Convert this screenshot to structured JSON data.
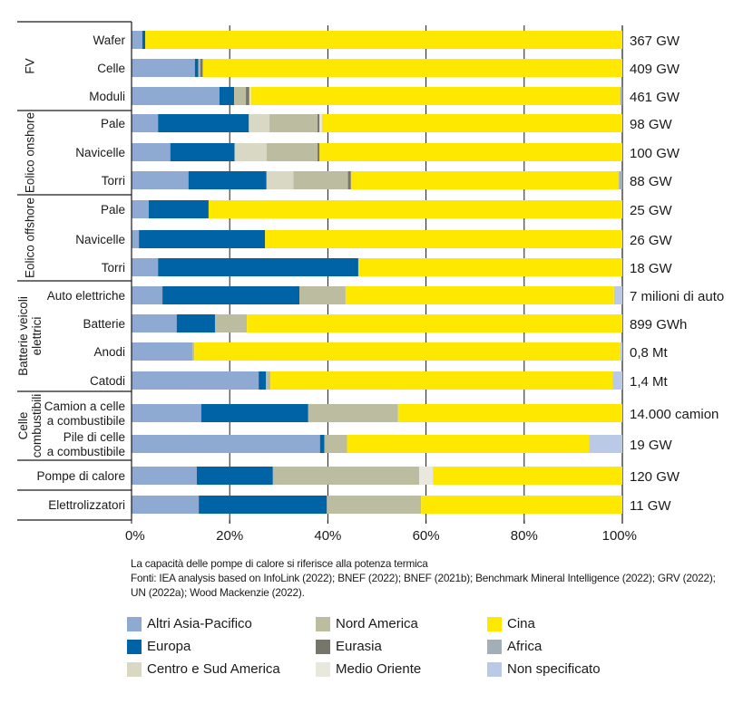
{
  "chart_data": {
    "type": "bar",
    "orientation": "horizontal",
    "stacked": true,
    "normalized": true,
    "title": "",
    "xlabel": "",
    "ylabel": "",
    "xlim": [
      0,
      100
    ],
    "x_ticks": [
      "0%",
      "20%",
      "40%",
      "60%",
      "80%",
      "100%"
    ],
    "grid": true,
    "legend_position": "bottom",
    "series_names": [
      "Altri Asia-Pacifico",
      "Europa",
      "Centro e Sud America",
      "Nord America",
      "Eurasia",
      "Medio Oriente",
      "Cina",
      "Africa",
      "Non specificato"
    ],
    "series_colors": {
      "Altri Asia-Pacifico": "#8faad2",
      "Europa": "#0063a6",
      "Centro e Sud America": "#d8d8c4",
      "Nord America": "#bcbda0",
      "Eurasia": "#76766a",
      "Medio Oriente": "#e8e8de",
      "Cina": "#ffe800",
      "Africa": "#a2afb8",
      "Non specificato": "#b9c9e6"
    },
    "groups": [
      {
        "name": "FV",
        "label_lines": [
          "FV"
        ]
      },
      {
        "name": "Eolico onshore",
        "label_lines": [
          "Eolico onshore"
        ]
      },
      {
        "name": "Eolico offshore",
        "label_lines": [
          "Eolico offshore"
        ]
      },
      {
        "name": "Batterie veicoli elettrici",
        "label_lines": [
          "Batterie veicoli",
          "elettrici"
        ]
      },
      {
        "name": "Celle combustibili",
        "label_lines": [
          "Celle",
          "combustibili"
        ]
      },
      {
        "name": "",
        "label_lines": []
      },
      {
        "name": "",
        "label_lines": []
      }
    ],
    "categories": [
      {
        "group": 0,
        "label_lines": [
          "Wafer"
        ],
        "total": "367 GW",
        "values": {
          "Altri Asia-Pacifico": 2.2,
          "Europa": 0.6,
          "Centro e Sud America": 0,
          "Nord America": 0,
          "Eurasia": 0,
          "Medio Oriente": 0,
          "Cina": 97.2,
          "Africa": 0,
          "Non specificato": 0
        }
      },
      {
        "group": 0,
        "label_lines": [
          "Celle"
        ],
        "total": "409 GW",
        "values": {
          "Altri Asia-Pacifico": 12.9,
          "Europa": 0.7,
          "Centro e Sud America": 0,
          "Nord America": 0.4,
          "Eurasia": 0.5,
          "Medio Oriente": 0,
          "Cina": 85.5,
          "Africa": 0,
          "Non specificato": 0
        }
      },
      {
        "group": 0,
        "label_lines": [
          "Moduli"
        ],
        "total": "461 GW",
        "values": {
          "Altri Asia-Pacifico": 17.9,
          "Europa": 3.0,
          "Centro e Sud America": 0,
          "Nord America": 2.4,
          "Eurasia": 0.7,
          "Medio Oriente": 0.3,
          "Cina": 75.3,
          "Africa": 0.4,
          "Non specificato": 0
        }
      },
      {
        "group": 1,
        "label_lines": [
          "Pale"
        ],
        "total": "98 GW",
        "values": {
          "Altri Asia-Pacifico": 5.4,
          "Europa": 18.5,
          "Centro e Sud America": 4.2,
          "Nord America": 9.8,
          "Eurasia": 0.4,
          "Medio Oriente": 0.5,
          "Cina": 61.2,
          "Africa": 0,
          "Non specificato": 0
        }
      },
      {
        "group": 1,
        "label_lines": [
          "Navicelle"
        ],
        "total": "100 GW",
        "values": {
          "Altri Asia-Pacifico": 7.9,
          "Europa": 13.1,
          "Centro e Sud America": 6.5,
          "Nord America": 10.4,
          "Eurasia": 0.4,
          "Medio Oriente": 0,
          "Cina": 61.7,
          "Africa": 0,
          "Non specificato": 0
        }
      },
      {
        "group": 1,
        "label_lines": [
          "Torri"
        ],
        "total": "88 GW",
        "values": {
          "Altri Asia-Pacifico": 11.6,
          "Europa": 15.9,
          "Centro e Sud America": 5.5,
          "Nord America": 11.1,
          "Eurasia": 0.6,
          "Medio Oriente": 0,
          "Cina": 54.6,
          "Africa": 0.7,
          "Non specificato": 0
        }
      },
      {
        "group": 2,
        "label_lines": [
          "Pale"
        ],
        "total": "25 GW",
        "values": {
          "Altri Asia-Pacifico": 3.5,
          "Europa": 12.2,
          "Centro e Sud America": 0,
          "Nord America": 0,
          "Eurasia": 0,
          "Medio Oriente": 0,
          "Cina": 84.3,
          "Africa": 0,
          "Non specificato": 0
        }
      },
      {
        "group": 2,
        "label_lines": [
          "Navicelle"
        ],
        "total": "26 GW",
        "values": {
          "Altri Asia-Pacifico": 1.5,
          "Europa": 25.7,
          "Centro e Sud America": 0,
          "Nord America": 0,
          "Eurasia": 0,
          "Medio Oriente": 0,
          "Cina": 72.8,
          "Africa": 0,
          "Non specificato": 0
        }
      },
      {
        "group": 2,
        "label_lines": [
          "Torri"
        ],
        "total": "18 GW",
        "values": {
          "Altri Asia-Pacifico": 5.4,
          "Europa": 40.8,
          "Centro e Sud America": 0,
          "Nord America": 0,
          "Eurasia": 0,
          "Medio Oriente": 0,
          "Cina": 53.8,
          "Africa": 0,
          "Non specificato": 0
        }
      },
      {
        "group": 3,
        "label_lines": [
          "Auto elettriche"
        ],
        "total": "7 milioni di auto",
        "values": {
          "Altri Asia-Pacifico": 6.3,
          "Europa": 27.9,
          "Centro e Sud America": 0,
          "Nord America": 9.4,
          "Eurasia": 0,
          "Medio Oriente": 0,
          "Cina": 54.7,
          "Africa": 0,
          "Non specificato": 1.7
        }
      },
      {
        "group": 3,
        "label_lines": [
          "Batterie"
        ],
        "total": "899 GWh",
        "values": {
          "Altri Asia-Pacifico": 9.2,
          "Europa": 7.8,
          "Centro e Sud America": 0,
          "Nord America": 6.5,
          "Eurasia": 0,
          "Medio Oriente": 0,
          "Cina": 76.5,
          "Africa": 0,
          "Non specificato": 0
        }
      },
      {
        "group": 3,
        "label_lines": [
          "Anodi"
        ],
        "total": "0,8 Mt",
        "values": {
          "Altri Asia-Pacifico": 12.4,
          "Europa": 0,
          "Centro e Sud America": 0,
          "Nord America": 0.4,
          "Eurasia": 0,
          "Medio Oriente": 0,
          "Cina": 86.8,
          "Africa": 0,
          "Non specificato": 0.4
        }
      },
      {
        "group": 3,
        "label_lines": [
          "Catodi"
        ],
        "total": "1,4 Mt",
        "values": {
          "Altri Asia-Pacifico": 25.9,
          "Europa": 1.5,
          "Centro e Sud America": 0,
          "Nord America": 0.9,
          "Eurasia": 0,
          "Medio Oriente": 0,
          "Cina": 69.7,
          "Africa": 0,
          "Non specificato": 2.0
        }
      },
      {
        "group": 4,
        "label_lines": [
          "Camion a celle",
          "a combustibile"
        ],
        "total": "14.000 camion",
        "values": {
          "Altri Asia-Pacifico": 14.2,
          "Europa": 21.8,
          "Centro e Sud America": 0,
          "Nord America": 18.3,
          "Eurasia": 0,
          "Medio Oriente": 0,
          "Cina": 45.7,
          "Africa": 0,
          "Non specificato": 0
        }
      },
      {
        "group": 4,
        "label_lines": [
          "Pile di celle",
          "a combustibile"
        ],
        "total": "19 GW",
        "values": {
          "Altri Asia-Pacifico": 38.4,
          "Europa": 0.9,
          "Centro e Sud America": 0,
          "Nord America": 4.6,
          "Eurasia": 0,
          "Medio Oriente": 0,
          "Cina": 49.3,
          "Africa": 0,
          "Non specificato": 6.8
        }
      },
      {
        "group": 5,
        "label_lines": [
          "Pompe di calore"
        ],
        "total": "120 GW",
        "values": {
          "Altri Asia-Pacifico": 13.3,
          "Europa": 15.5,
          "Centro e Sud America": 0,
          "Nord America": 29.8,
          "Eurasia": 0,
          "Medio Oriente": 2.8,
          "Cina": 38.6,
          "Africa": 0,
          "Non specificato": 0
        }
      },
      {
        "group": 6,
        "label_lines": [
          "Elettrolizzatori"
        ],
        "total": "11 GW",
        "values": {
          "Altri Asia-Pacifico": 13.7,
          "Europa": 26.1,
          "Centro e Sud America": 0,
          "Nord America": 19.2,
          "Eurasia": 0,
          "Medio Oriente": 0,
          "Cina": 41.0,
          "Africa": 0,
          "Non specificato": 0
        }
      }
    ],
    "annotations": [
      "La capacità delle pompe di calore si riferisce alla potenza termica",
      "Fonti: IEA analysis based on InfoLink (2022); BNEF (2022); BNEF (2021b); Benchmark Mineral Intelligence (2022); GRV (2022);",
      "UN (2022a); Wood Mackenzie (2022)."
    ]
  },
  "notes": {
    "line1": "La capacità delle pompe di calore si riferisce alla potenza termica",
    "line2": "Fonti: IEA analysis based on InfoLink (2022); BNEF (2022); BNEF (2021b); Benchmark Mineral Intelligence (2022); GRV (2022);",
    "line3": "UN (2022a); Wood Mackenzie (2022)."
  },
  "legend": {
    "items": [
      {
        "label": "Altri Asia-Pacifico",
        "color": "#8faad2"
      },
      {
        "label": "Europa",
        "color": "#0063a6"
      },
      {
        "label": "Centro e Sud America",
        "color": "#d8d8c4"
      },
      {
        "label": "Nord America",
        "color": "#bcbda0"
      },
      {
        "label": "Eurasia",
        "color": "#76766a"
      },
      {
        "label": "Medio Oriente",
        "color": "#e8e8de"
      },
      {
        "label": "Cina",
        "color": "#ffe800"
      },
      {
        "label": "Africa",
        "color": "#a2afb8"
      },
      {
        "label": "Non specificato",
        "color": "#b9c9e6"
      }
    ]
  }
}
